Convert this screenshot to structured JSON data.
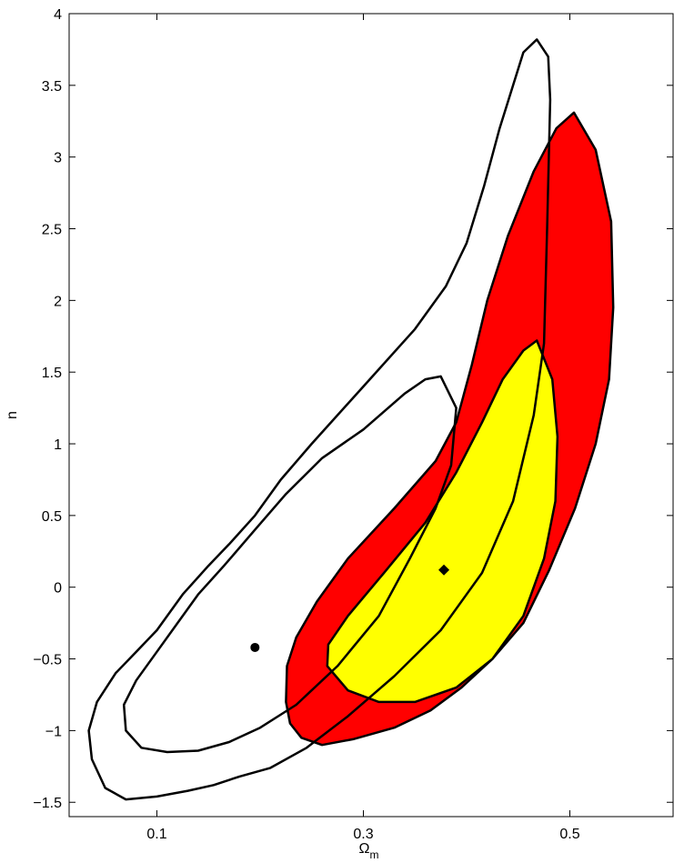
{
  "chart_data": {
    "type": "contour",
    "title": "",
    "xlabel": "Ω",
    "xlabel_subscript": "m",
    "ylabel": "n",
    "xlim": [
      0.015,
      0.6
    ],
    "ylim": [
      -1.6,
      4.0
    ],
    "xticks": [
      0.1,
      0.3,
      0.5
    ],
    "xtick_labels": [
      "0.1",
      "0.3",
      "0.5"
    ],
    "yticks": [
      -1.5,
      -1,
      -0.5,
      0,
      0.5,
      1,
      1.5,
      2,
      2.5,
      3,
      3.5,
      4
    ],
    "ytick_labels": [
      "−1.5",
      "−1",
      "−0.5",
      "0",
      "0.5",
      "1",
      "1.5",
      "2",
      "2.5",
      "3",
      "3.5",
      "4"
    ],
    "grid": false,
    "legend": "none",
    "colors": {
      "outer_fill": "#ff0000",
      "inner_fill": "#ffff00",
      "line": "#000000"
    },
    "regions": [
      {
        "id": "filled-outer",
        "fill": "#ff0000",
        "points": [
          [
            0.504,
            3.31
          ],
          [
            0.525,
            3.05
          ],
          [
            0.54,
            2.55
          ],
          [
            0.542,
            1.95
          ],
          [
            0.538,
            1.45
          ],
          [
            0.525,
            1.0
          ],
          [
            0.505,
            0.55
          ],
          [
            0.48,
            0.12
          ],
          [
            0.455,
            -0.25
          ],
          [
            0.425,
            -0.5
          ],
          [
            0.395,
            -0.7
          ],
          [
            0.365,
            -0.86
          ],
          [
            0.33,
            -0.98
          ],
          [
            0.29,
            -1.06
          ],
          [
            0.26,
            -1.1
          ],
          [
            0.24,
            -1.05
          ],
          [
            0.229,
            -0.95
          ],
          [
            0.225,
            -0.8
          ],
          [
            0.226,
            -0.55
          ],
          [
            0.235,
            -0.35
          ],
          [
            0.255,
            -0.1
          ],
          [
            0.285,
            0.2
          ],
          [
            0.33,
            0.55
          ],
          [
            0.37,
            0.88
          ],
          [
            0.39,
            1.15
          ],
          [
            0.405,
            1.55
          ],
          [
            0.42,
            2.0
          ],
          [
            0.44,
            2.45
          ],
          [
            0.465,
            2.9
          ],
          [
            0.487,
            3.2
          ]
        ]
      },
      {
        "id": "filled-inner",
        "fill": "#ffff00",
        "points": [
          [
            0.468,
            1.72
          ],
          [
            0.483,
            1.45
          ],
          [
            0.488,
            1.05
          ],
          [
            0.486,
            0.6
          ],
          [
            0.475,
            0.2
          ],
          [
            0.455,
            -0.2
          ],
          [
            0.425,
            -0.5
          ],
          [
            0.39,
            -0.7
          ],
          [
            0.35,
            -0.8
          ],
          [
            0.315,
            -0.8
          ],
          [
            0.285,
            -0.72
          ],
          [
            0.265,
            -0.55
          ],
          [
            0.266,
            -0.4
          ],
          [
            0.285,
            -0.2
          ],
          [
            0.32,
            0.1
          ],
          [
            0.36,
            0.45
          ],
          [
            0.39,
            0.8
          ],
          [
            0.415,
            1.15
          ],
          [
            0.435,
            1.45
          ],
          [
            0.455,
            1.65
          ]
        ]
      }
    ],
    "contours": [
      {
        "id": "open-outer",
        "closed": true,
        "points": [
          [
            0.468,
            3.82
          ],
          [
            0.479,
            3.7
          ],
          [
            0.481,
            3.4
          ],
          [
            0.478,
            2.5
          ],
          [
            0.475,
            1.7
          ],
          [
            0.465,
            1.2
          ],
          [
            0.445,
            0.6
          ],
          [
            0.415,
            0.1
          ],
          [
            0.375,
            -0.3
          ],
          [
            0.33,
            -0.62
          ],
          [
            0.285,
            -0.9
          ],
          [
            0.245,
            -1.12
          ],
          [
            0.21,
            -1.26
          ],
          [
            0.18,
            -1.32
          ],
          [
            0.155,
            -1.38
          ],
          [
            0.13,
            -1.42
          ],
          [
            0.1,
            -1.46
          ],
          [
            0.07,
            -1.48
          ],
          [
            0.05,
            -1.4
          ],
          [
            0.037,
            -1.2
          ],
          [
            0.034,
            -1.0
          ],
          [
            0.042,
            -0.8
          ],
          [
            0.06,
            -0.6
          ],
          [
            0.08,
            -0.45
          ],
          [
            0.1,
            -0.3
          ],
          [
            0.125,
            -0.05
          ],
          [
            0.15,
            0.15
          ],
          [
            0.17,
            0.3
          ],
          [
            0.195,
            0.5
          ],
          [
            0.22,
            0.75
          ],
          [
            0.25,
            1.0
          ],
          [
            0.3,
            1.4
          ],
          [
            0.35,
            1.8
          ],
          [
            0.38,
            2.1
          ],
          [
            0.4,
            2.4
          ],
          [
            0.417,
            2.8
          ],
          [
            0.432,
            3.2
          ],
          [
            0.445,
            3.5
          ],
          [
            0.455,
            3.73
          ]
        ]
      },
      {
        "id": "open-inner",
        "closed": true,
        "points": [
          [
            0.375,
            1.47
          ],
          [
            0.39,
            1.25
          ],
          [
            0.385,
            0.85
          ],
          [
            0.37,
            0.55
          ],
          [
            0.345,
            0.2
          ],
          [
            0.315,
            -0.2
          ],
          [
            0.275,
            -0.55
          ],
          [
            0.235,
            -0.82
          ],
          [
            0.2,
            -0.98
          ],
          [
            0.17,
            -1.08
          ],
          [
            0.14,
            -1.14
          ],
          [
            0.11,
            -1.15
          ],
          [
            0.085,
            -1.12
          ],
          [
            0.07,
            -1.0
          ],
          [
            0.068,
            -0.82
          ],
          [
            0.08,
            -0.65
          ],
          [
            0.1,
            -0.45
          ],
          [
            0.12,
            -0.25
          ],
          [
            0.14,
            -0.05
          ],
          [
            0.165,
            0.15
          ],
          [
            0.195,
            0.4
          ],
          [
            0.225,
            0.65
          ],
          [
            0.26,
            0.9
          ],
          [
            0.3,
            1.1
          ],
          [
            0.34,
            1.35
          ],
          [
            0.36,
            1.45
          ]
        ]
      }
    ],
    "markers": [
      {
        "id": "marker-circle",
        "shape": "circle",
        "x": 0.195,
        "y": -0.42
      },
      {
        "id": "marker-diamond",
        "shape": "diamond",
        "x": 0.378,
        "y": 0.12
      }
    ]
  }
}
